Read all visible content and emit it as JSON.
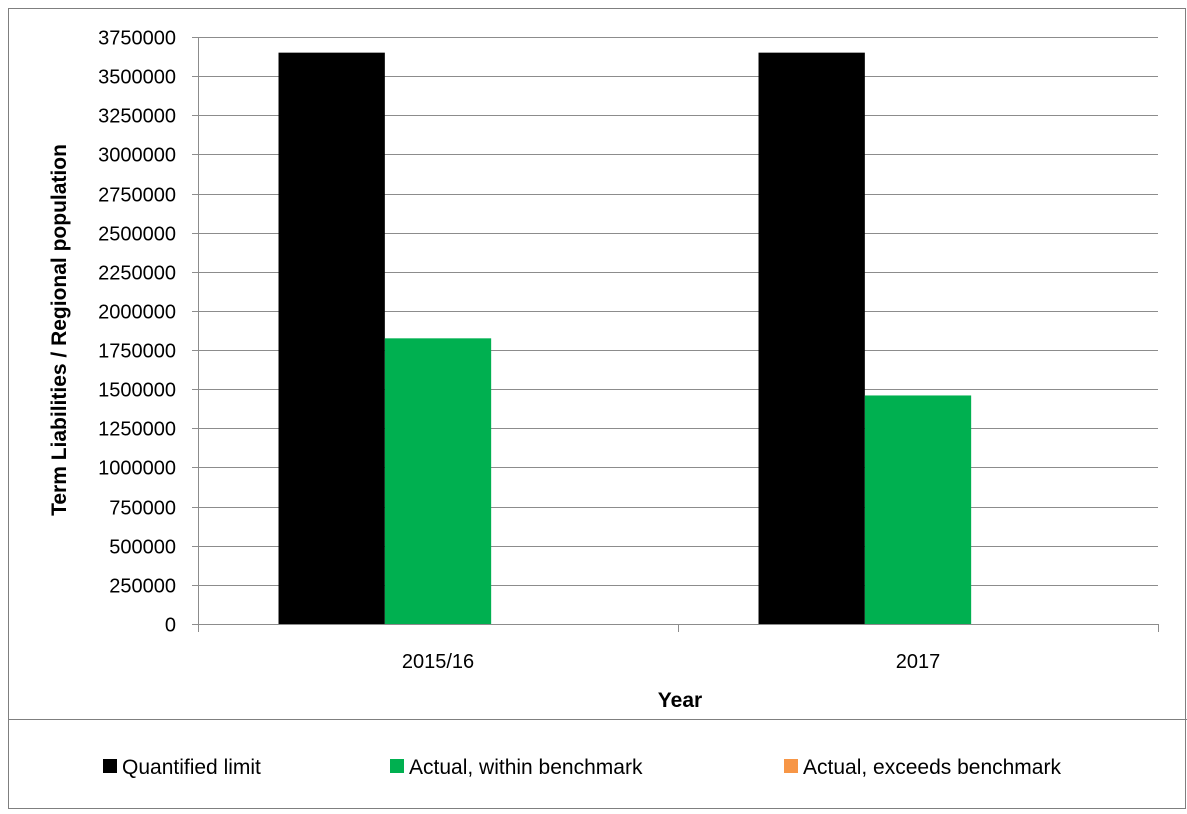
{
  "chart_data": {
    "type": "bar",
    "title": "",
    "xlabel": "Year",
    "ylabel": "Term Liabilities / Regional population",
    "categories": [
      "2015/16",
      "2017"
    ],
    "ylim": [
      0,
      3750000
    ],
    "ytick_step": 250000,
    "grid": true,
    "legend_position": "bottom",
    "series": [
      {
        "name": "Quantified limit",
        "color": "#000000",
        "values": [
          3650000,
          3650000
        ]
      },
      {
        "name": "Actual, within benchmark",
        "color": "#00b050",
        "values": [
          1825000,
          1460000
        ]
      },
      {
        "name": "Actual, exceeds benchmark",
        "color": "#f79646",
        "values": [
          0,
          0
        ]
      }
    ]
  }
}
